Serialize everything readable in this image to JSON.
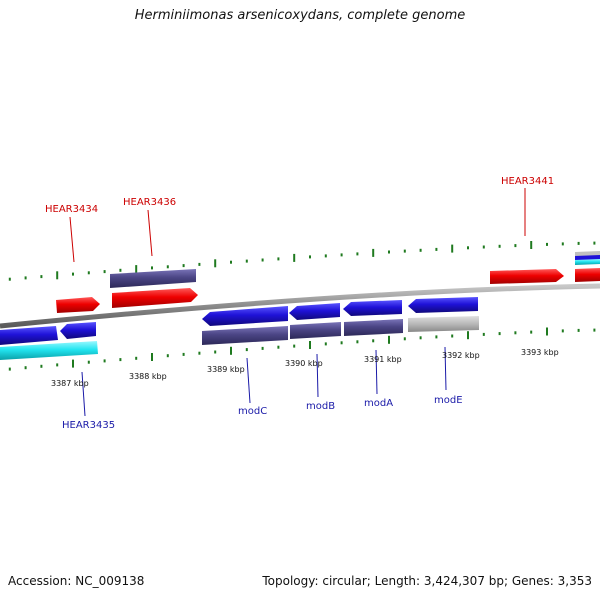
{
  "title": "Herminiimonas arsenicoxydans, complete genome",
  "accession": "Accession: NC_009138",
  "summary": "Topology: circular; Length: 3,424,307 bp; Genes: 3,353",
  "ticks": [
    "3387 kbp",
    "3388 kbp",
    "3389 kbp",
    "3390 kbp",
    "3391 kbp",
    "3392 kbp",
    "3393 kbp"
  ],
  "genes_top": [
    "HEAR3434",
    "HEAR3436",
    "HEAR3441"
  ],
  "genes_bottom": [
    "HEAR3435",
    "modC",
    "modB",
    "modA",
    "modE"
  ],
  "colors": {
    "forward_gene": "#ee0000",
    "reverse_gene": "#1f12d8",
    "protein": "#4b4585",
    "rna": "#22e5f0",
    "pseudo": "#b8b8b8",
    "backbone": "#8a8a8a",
    "tick": "#1f7a1f",
    "top_label": "#cc0000",
    "bottom_label": "#1a1aa8"
  }
}
